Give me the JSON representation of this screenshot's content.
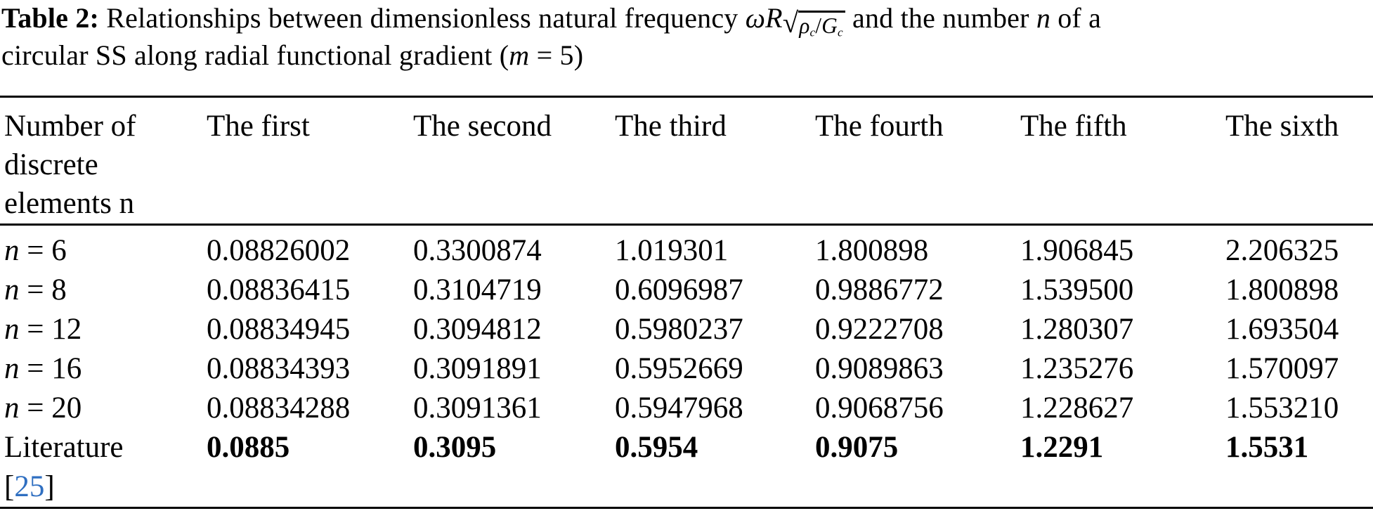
{
  "colors": {
    "background": "#ffffff",
    "text": "#000000",
    "rule": "#000000",
    "link_blue": "#2f6fc1"
  },
  "caption": {
    "label": "Table 2:",
    "seg_a": " Relationships between dimensionless natural frequency ",
    "math_omega_r": "ωR",
    "math_sqrt": "√",
    "math_rho": "ρ",
    "math_sub_c1": "c",
    "math_slash": "/",
    "math_g": "G",
    "math_sub_c2": "c",
    "seg_b": " and the number ",
    "math_n": "n",
    "seg_c": " of a",
    "seg_d": "circular SS along radial functional gradient (",
    "math_m": "m",
    "seg_e": " = 5)"
  },
  "table": {
    "header": {
      "col0": "Number of discrete elements n",
      "col1": "The first",
      "col2": "The second",
      "col3": "The third",
      "col4": "The fourth",
      "col5": "The fifth",
      "col6": "The sixth"
    },
    "rows": [
      {
        "var": "n",
        "eq": " = 6",
        "values": [
          "0.08826002",
          "0.3300874",
          "1.019301",
          "1.800898",
          "1.906845",
          "2.206325"
        ]
      },
      {
        "var": "n",
        "eq": " = 8",
        "values": [
          "0.08836415",
          "0.3104719",
          "0.6096987",
          "0.9886772",
          "1.539500",
          "1.800898"
        ]
      },
      {
        "var": "n",
        "eq": " = 12",
        "values": [
          "0.08834945",
          "0.3094812",
          "0.5980237",
          "0.9222708",
          "1.280307",
          "1.693504"
        ]
      },
      {
        "var": "n",
        "eq": " = 16",
        "values": [
          "0.08834393",
          "0.3091891",
          "0.5952669",
          "0.9089863",
          "1.235276",
          "1.570097"
        ]
      },
      {
        "var": "n",
        "eq": " = 20",
        "values": [
          "0.08834288",
          "0.3091361",
          "0.5947968",
          "0.9068756",
          "1.228627",
          "1.553210"
        ]
      },
      {
        "label": "Literature",
        "bracket_open": "[",
        "ref": "25",
        "bracket_close": "]",
        "values": [
          "0.0885",
          "0.3095",
          "0.5954",
          "0.9075",
          "1.2291",
          "1.5531"
        ]
      }
    ]
  }
}
